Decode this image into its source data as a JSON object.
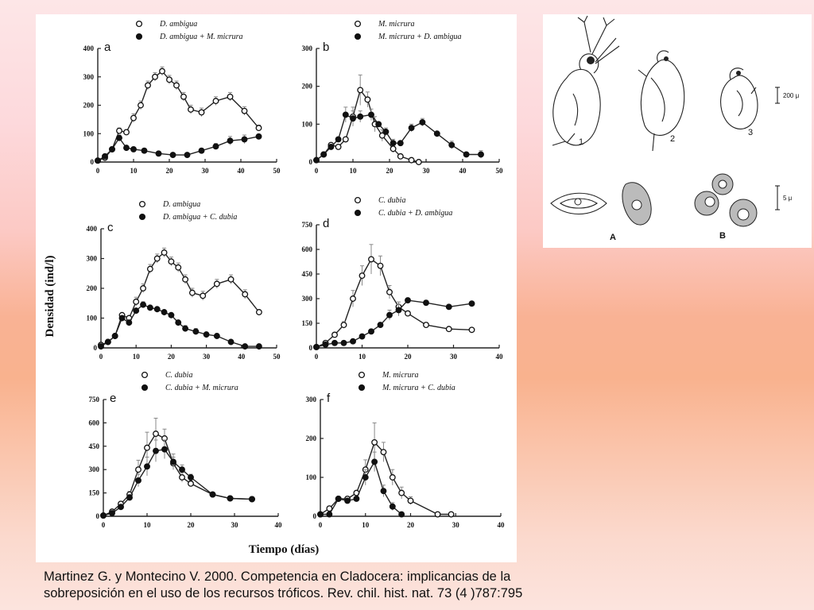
{
  "figure": {
    "ylabel": "Densidad  (ind/l)",
    "xlabel": "Tiempo (días)"
  },
  "chart_data": [
    {
      "type": "line",
      "panel_label": "a",
      "xlim": [
        0,
        50
      ],
      "ylim": [
        0,
        400
      ],
      "xticks": [
        0,
        10,
        20,
        30,
        40,
        50
      ],
      "yticks": [
        0,
        100,
        200,
        300,
        400
      ],
      "series": [
        {
          "name": "D. ambigua",
          "marker": "open",
          "x": [
            0,
            2,
            4,
            6,
            8,
            10,
            12,
            14,
            16,
            18,
            20,
            22,
            24,
            26,
            29,
            33,
            37,
            41,
            45
          ],
          "y": [
            5,
            15,
            45,
            110,
            105,
            155,
            200,
            270,
            300,
            320,
            290,
            270,
            230,
            185,
            175,
            215,
            230,
            180,
            120
          ],
          "err": [
            0,
            0,
            0,
            10,
            0,
            15,
            15,
            15,
            15,
            15,
            15,
            15,
            15,
            15,
            15,
            15,
            15,
            15,
            10
          ]
        },
        {
          "name": "D. ambigua + M. micrura",
          "marker": "filled",
          "x": [
            0,
            2,
            4,
            6,
            8,
            10,
            13,
            17,
            21,
            25,
            29,
            33,
            37,
            41,
            45
          ],
          "y": [
            5,
            20,
            45,
            85,
            50,
            45,
            40,
            30,
            25,
            25,
            40,
            55,
            75,
            80,
            90
          ],
          "err": [
            0,
            0,
            0,
            10,
            0,
            0,
            0,
            0,
            0,
            0,
            0,
            10,
            15,
            15,
            0
          ]
        }
      ]
    },
    {
      "type": "line",
      "panel_label": "b",
      "xlim": [
        0,
        50
      ],
      "ylim": [
        0,
        300
      ],
      "xticks": [
        0,
        10,
        20,
        30,
        40,
        50
      ],
      "yticks": [
        0,
        100,
        200,
        300
      ],
      "series": [
        {
          "name": "M. micrura",
          "marker": "open",
          "x": [
            0,
            2,
            4,
            6,
            8,
            10,
            12,
            14,
            16,
            18,
            21,
            23,
            26,
            28
          ],
          "y": [
            5,
            20,
            45,
            40,
            60,
            120,
            190,
            165,
            100,
            70,
            35,
            15,
            5,
            0
          ],
          "err": [
            0,
            0,
            0,
            0,
            0,
            25,
            40,
            20,
            20,
            15,
            10,
            0,
            0,
            0
          ]
        },
        {
          "name": "M. micrura + D. ambigua",
          "marker": "filled",
          "x": [
            0,
            2,
            4,
            6,
            8,
            10,
            12,
            15,
            17,
            19,
            21,
            23,
            26,
            29,
            33,
            37,
            41,
            45
          ],
          "y": [
            5,
            20,
            40,
            60,
            125,
            115,
            120,
            125,
            100,
            80,
            50,
            50,
            90,
            105,
            75,
            45,
            20,
            20
          ],
          "err": [
            0,
            0,
            0,
            0,
            20,
            20,
            15,
            15,
            0,
            10,
            10,
            0,
            10,
            10,
            0,
            10,
            0,
            10
          ]
        }
      ]
    },
    {
      "type": "line",
      "panel_label": "c",
      "xlim": [
        0,
        50
      ],
      "ylim": [
        0,
        400
      ],
      "xticks": [
        0,
        10,
        20,
        30,
        40,
        50
      ],
      "yticks": [
        0,
        100,
        200,
        300,
        400
      ],
      "series": [
        {
          "name": "D. ambigua",
          "marker": "open",
          "x": [
            0,
            2,
            4,
            6,
            8,
            10,
            12,
            14,
            16,
            18,
            20,
            22,
            24,
            26,
            29,
            33,
            37,
            41,
            45
          ],
          "y": [
            10,
            20,
            40,
            110,
            100,
            155,
            200,
            265,
            300,
            320,
            290,
            270,
            230,
            185,
            175,
            215,
            230,
            180,
            120
          ],
          "err": [
            0,
            0,
            0,
            0,
            0,
            15,
            15,
            15,
            15,
            15,
            15,
            15,
            15,
            15,
            15,
            15,
            15,
            15,
            0
          ]
        },
        {
          "name": "D. ambigua + C. dubia",
          "marker": "filled",
          "x": [
            0,
            2,
            4,
            6,
            8,
            10,
            12,
            14,
            16,
            18,
            20,
            22,
            24,
            27,
            30,
            33,
            37,
            41,
            45
          ],
          "y": [
            5,
            20,
            40,
            100,
            85,
            125,
            145,
            135,
            130,
            120,
            110,
            85,
            65,
            55,
            45,
            40,
            20,
            5,
            5
          ],
          "err": [
            0,
            0,
            0,
            0,
            0,
            0,
            10,
            0,
            0,
            0,
            0,
            0,
            10,
            10,
            0,
            0,
            0,
            0,
            0
          ]
        }
      ]
    },
    {
      "type": "line",
      "panel_label": "d",
      "xlim": [
        0,
        40
      ],
      "ylim": [
        0,
        750
      ],
      "xticks": [
        0,
        10,
        20,
        30,
        40
      ],
      "yticks": [
        0,
        150,
        300,
        450,
        600,
        750
      ],
      "series": [
        {
          "name": "C. dubia",
          "marker": "open",
          "x": [
            0,
            2,
            4,
            6,
            8,
            10,
            12,
            14,
            16,
            18,
            20,
            24,
            29,
            34
          ],
          "y": [
            5,
            30,
            80,
            140,
            300,
            440,
            540,
            500,
            340,
            250,
            210,
            140,
            115,
            110
          ],
          "err": [
            0,
            0,
            0,
            20,
            50,
            60,
            90,
            60,
            40,
            30,
            0,
            0,
            0,
            0
          ]
        },
        {
          "name": "C. dubia + D. ambigua",
          "marker": "filled",
          "x": [
            0,
            2,
            4,
            6,
            8,
            10,
            12,
            14,
            16,
            18,
            20,
            24,
            29,
            34
          ],
          "y": [
            5,
            20,
            30,
            30,
            40,
            70,
            100,
            140,
            200,
            230,
            290,
            275,
            250,
            270
          ],
          "err": [
            0,
            0,
            0,
            0,
            0,
            0,
            10,
            15,
            30,
            35,
            0,
            0,
            0,
            10
          ]
        }
      ]
    },
    {
      "type": "line",
      "panel_label": "e",
      "xlim": [
        0,
        40
      ],
      "ylim": [
        0,
        750
      ],
      "xticks": [
        0,
        10,
        20,
        30,
        40
      ],
      "yticks": [
        0,
        150,
        300,
        450,
        600,
        750
      ],
      "series": [
        {
          "name": "C. dubia",
          "marker": "open",
          "x": [
            0,
            2,
            4,
            6,
            8,
            10,
            12,
            14,
            16,
            18,
            20,
            25,
            29,
            34
          ],
          "y": [
            5,
            30,
            80,
            140,
            300,
            440,
            530,
            500,
            340,
            250,
            210,
            140,
            115,
            110
          ],
          "err": [
            0,
            0,
            0,
            20,
            60,
            100,
            100,
            60,
            40,
            30,
            20,
            0,
            0,
            0
          ]
        },
        {
          "name": "C. dubia + M. micrura",
          "marker": "filled",
          "x": [
            0,
            2,
            4,
            6,
            8,
            10,
            12,
            14,
            16,
            18,
            20,
            25,
            29,
            34
          ],
          "y": [
            5,
            20,
            60,
            120,
            230,
            320,
            420,
            430,
            350,
            300,
            250,
            140,
            115,
            110
          ],
          "err": [
            0,
            0,
            0,
            20,
            40,
            60,
            70,
            60,
            50,
            30,
            20,
            0,
            0,
            0
          ]
        }
      ]
    },
    {
      "type": "line",
      "panel_label": "f",
      "xlim": [
        0,
        40
      ],
      "ylim": [
        0,
        300
      ],
      "xticks": [
        0,
        10,
        20,
        30,
        40
      ],
      "yticks": [
        0,
        100,
        200,
        300
      ],
      "series": [
        {
          "name": "M. micrura",
          "marker": "open",
          "x": [
            0,
            2,
            4,
            6,
            8,
            10,
            12,
            14,
            16,
            18,
            20,
            26,
            29
          ],
          "y": [
            5,
            20,
            45,
            45,
            60,
            120,
            190,
            165,
            100,
            60,
            40,
            5,
            5
          ],
          "err": [
            0,
            0,
            0,
            0,
            0,
            25,
            50,
            25,
            20,
            15,
            10,
            0,
            0
          ]
        },
        {
          "name": "M. micrura + C. dubia",
          "marker": "filled",
          "x": [
            0,
            2,
            4,
            6,
            8,
            10,
            12,
            14,
            16,
            18
          ],
          "y": [
            5,
            5,
            45,
            40,
            45,
            100,
            140,
            65,
            25,
            5
          ],
          "err": [
            0,
            0,
            0,
            0,
            0,
            20,
            25,
            15,
            10,
            0
          ]
        }
      ]
    }
  ],
  "drawing": {
    "organism_labels": [
      "1",
      "2",
      "3"
    ],
    "algae_labels": [
      "A",
      "B"
    ],
    "scale_labels": [
      "200 μ",
      "5 μ"
    ]
  },
  "citation": {
    "line1": "Martinez G. y Montecino V. 2000. Competencia en Cladocera: implicancias de la",
    "line2": "sobreposición en el uso de los recursos tróficos. Rev. chil. hist. nat. 73 (4 )787:795"
  }
}
